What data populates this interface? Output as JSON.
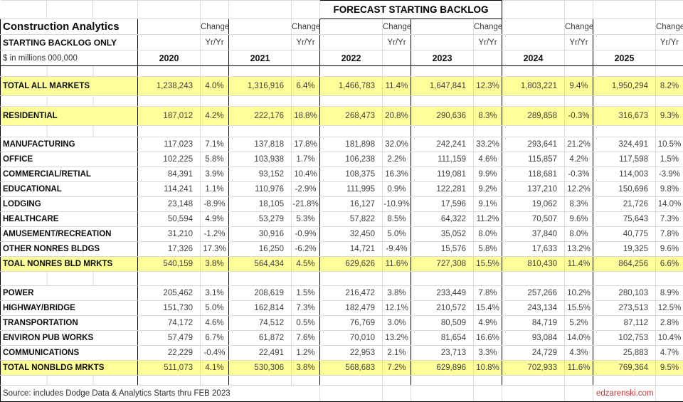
{
  "title": "FORECAST STARTING BACKLOG",
  "header": {
    "org": "Construction Analytics",
    "subtitle": "STARTING BACKLOG ONLY",
    "units": "$ in millions 000,000",
    "change_label": "Change",
    "yryr_label": "Yr/Yr",
    "years": [
      "2020",
      "2021",
      "2022",
      "2023",
      "2024",
      "2025"
    ]
  },
  "colors": {
    "highlight": "#FFFF99",
    "gridline": "#d9d9d9",
    "border": "#000000",
    "site_link": "#CC3333"
  },
  "sections": [
    {
      "rows": [
        {
          "label": "TOTAL ALL MARKETS",
          "highlight": true,
          "cells": [
            [
              "1,238,243",
              "4.0%"
            ],
            [
              "1,316,916",
              "6.4%"
            ],
            [
              "1,466,783",
              "11.4%"
            ],
            [
              "1,647,841",
              "12.3%"
            ],
            [
              "1,803,221",
              "9.4%"
            ],
            [
              "1,950,294",
              "8.2%"
            ]
          ]
        }
      ]
    },
    {
      "rows": [
        {
          "label": "RESIDENTIAL",
          "highlight": true,
          "cells": [
            [
              "187,012",
              "4.2%"
            ],
            [
              "222,176",
              "18.8%"
            ],
            [
              "268,473",
              "20.8%"
            ],
            [
              "290,636",
              "8.3%"
            ],
            [
              "289,858",
              "-0.3%"
            ],
            [
              "316,673",
              "9.3%"
            ]
          ]
        }
      ]
    },
    {
      "rows": [
        {
          "label": "MANUFACTURING",
          "highlight": false,
          "cells": [
            [
              "117,023",
              "7.1%"
            ],
            [
              "137,818",
              "17.8%"
            ],
            [
              "181,898",
              "32.0%"
            ],
            [
              "242,241",
              "33.2%"
            ],
            [
              "293,641",
              "21.2%"
            ],
            [
              "324,491",
              "10.5%"
            ]
          ]
        },
        {
          "label": "OFFICE",
          "highlight": false,
          "cells": [
            [
              "102,225",
              "5.8%"
            ],
            [
              "103,938",
              "1.7%"
            ],
            [
              "106,238",
              "2.2%"
            ],
            [
              "111,159",
              "4.6%"
            ],
            [
              "115,857",
              "4.2%"
            ],
            [
              "117,598",
              "1.5%"
            ]
          ]
        },
        {
          "label": "COMMERCIAL/RETIAL",
          "highlight": false,
          "cells": [
            [
              "84,391",
              "3.9%"
            ],
            [
              "93,152",
              "10.4%"
            ],
            [
              "108,375",
              "16.3%"
            ],
            [
              "119,081",
              "9.9%"
            ],
            [
              "118,681",
              "-0.3%"
            ],
            [
              "114,003",
              "-3.9%"
            ]
          ]
        },
        {
          "label": "EDUCATIONAL",
          "highlight": false,
          "cells": [
            [
              "114,241",
              "1.1%"
            ],
            [
              "110,976",
              "-2.9%"
            ],
            [
              "111,995",
              "0.9%"
            ],
            [
              "122,281",
              "9.2%"
            ],
            [
              "137,210",
              "12.2%"
            ],
            [
              "150,696",
              "9.8%"
            ]
          ]
        },
        {
          "label": "LODGING",
          "highlight": false,
          "cells": [
            [
              "23,148",
              "-8.9%"
            ],
            [
              "18,105",
              "-21.8%"
            ],
            [
              "16,127",
              "-10.9%"
            ],
            [
              "17,596",
              "9.1%"
            ],
            [
              "19,062",
              "8.3%"
            ],
            [
              "21,726",
              "14.0%"
            ]
          ]
        },
        {
          "label": "HEALTHCARE",
          "highlight": false,
          "cells": [
            [
              "50,594",
              "4.9%"
            ],
            [
              "53,279",
              "5.3%"
            ],
            [
              "57,822",
              "8.5%"
            ],
            [
              "64,322",
              "11.2%"
            ],
            [
              "70,507",
              "9.6%"
            ],
            [
              "75,643",
              "7.3%"
            ]
          ]
        },
        {
          "label": "AMUSEMENT/RECREATION",
          "highlight": false,
          "cells": [
            [
              "31,210",
              "-1.2%"
            ],
            [
              "30,916",
              "-0.9%"
            ],
            [
              "32,450",
              "5.0%"
            ],
            [
              "35,052",
              "8.0%"
            ],
            [
              "37,840",
              "8.0%"
            ],
            [
              "40,775",
              "7.8%"
            ]
          ]
        },
        {
          "label": "OTHER NONRES BLDGS",
          "highlight": false,
          "cells": [
            [
              "17,326",
              "17.3%"
            ],
            [
              "16,250",
              "-6.2%"
            ],
            [
              "14,721",
              "-9.4%"
            ],
            [
              "15,576",
              "5.8%"
            ],
            [
              "17,633",
              "13.2%"
            ],
            [
              "19,325",
              "9.6%"
            ]
          ]
        },
        {
          "label": "TOAL NONRES BLD MRKTS",
          "highlight": true,
          "cells": [
            [
              "540,159",
              "3.8%"
            ],
            [
              "564,434",
              "4.5%"
            ],
            [
              "629,626",
              "11.6%"
            ],
            [
              "727,308",
              "15.5%"
            ],
            [
              "810,430",
              "11.4%"
            ],
            [
              "864,256",
              "6.6%"
            ]
          ]
        }
      ]
    },
    {
      "rows": [
        {
          "label": "POWER",
          "highlight": false,
          "cells": [
            [
              "205,462",
              "3.1%"
            ],
            [
              "208,619",
              "1.5%"
            ],
            [
              "216,472",
              "3.8%"
            ],
            [
              "233,449",
              "7.8%"
            ],
            [
              "257,266",
              "10.2%"
            ],
            [
              "280,103",
              "8.9%"
            ]
          ]
        },
        {
          "label": "HIGHWAY/BRIDGE",
          "highlight": false,
          "cells": [
            [
              "151,730",
              "5.0%"
            ],
            [
              "162,814",
              "7.3%"
            ],
            [
              "182,479",
              "12.1%"
            ],
            [
              "210,572",
              "15.4%"
            ],
            [
              "243,134",
              "15.5%"
            ],
            [
              "273,513",
              "12.5%"
            ]
          ]
        },
        {
          "label": "TRANSPORTATION",
          "highlight": false,
          "cells": [
            [
              "74,172",
              "4.6%"
            ],
            [
              "74,512",
              "0.5%"
            ],
            [
              "76,769",
              "3.0%"
            ],
            [
              "80,509",
              "4.9%"
            ],
            [
              "84,719",
              "5.2%"
            ],
            [
              "87,112",
              "2.8%"
            ]
          ]
        },
        {
          "label": "ENVIRON PUB WORKS",
          "highlight": false,
          "cells": [
            [
              "57,479",
              "6.7%"
            ],
            [
              "61,872",
              "7.6%"
            ],
            [
              "70,010",
              "13.2%"
            ],
            [
              "81,654",
              "16.6%"
            ],
            [
              "93,084",
              "14.0%"
            ],
            [
              "102,753",
              "10.4%"
            ]
          ]
        },
        {
          "label": "COMMUNICATIONS",
          "highlight": false,
          "cells": [
            [
              "22,229",
              "-0.4%"
            ],
            [
              "22,491",
              "1.2%"
            ],
            [
              "22,953",
              "2.1%"
            ],
            [
              "23,713",
              "3.3%"
            ],
            [
              "24,729",
              "4.3%"
            ],
            [
              "25,883",
              "4.7%"
            ]
          ]
        },
        {
          "label": "TOTAL NONBLDG MRKTS",
          "highlight": true,
          "cells": [
            [
              "511,073",
              "4.1%"
            ],
            [
              "530,306",
              "3.8%"
            ],
            [
              "568,683",
              "7.2%"
            ],
            [
              "629,896",
              "10.8%"
            ],
            [
              "702,933",
              "11.6%"
            ],
            [
              "769,364",
              "9.5%"
            ]
          ]
        }
      ]
    }
  ],
  "footer": {
    "source": "Source: includes Dodge Data & Analytics Starts thru FEB 2023",
    "site": "edzarenski.com"
  }
}
